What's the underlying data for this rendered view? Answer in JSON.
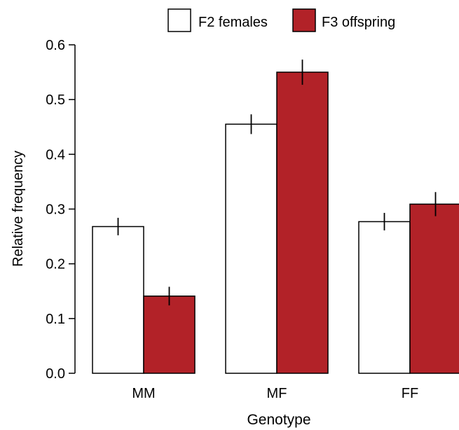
{
  "chart_data": {
    "type": "bar",
    "title": "",
    "xlabel": "Genotype",
    "ylabel": "Relative frequency",
    "ylim": [
      0,
      0.6
    ],
    "yticks": [
      "0.0",
      "0.1",
      "0.2",
      "0.3",
      "0.4",
      "0.5",
      "0.6"
    ],
    "categories": [
      "MM",
      "MF",
      "FF"
    ],
    "series": [
      {
        "name": "F2 females",
        "color": "#ffffff",
        "values": [
          0.268,
          0.455,
          0.277
        ],
        "errors": [
          0.016,
          0.018,
          0.016
        ]
      },
      {
        "name": "F3 offspring",
        "color": "#b22228",
        "values": [
          0.141,
          0.55,
          0.309
        ],
        "errors": [
          0.017,
          0.023,
          0.022
        ]
      }
    ],
    "legend_position": "top",
    "grid": false
  }
}
